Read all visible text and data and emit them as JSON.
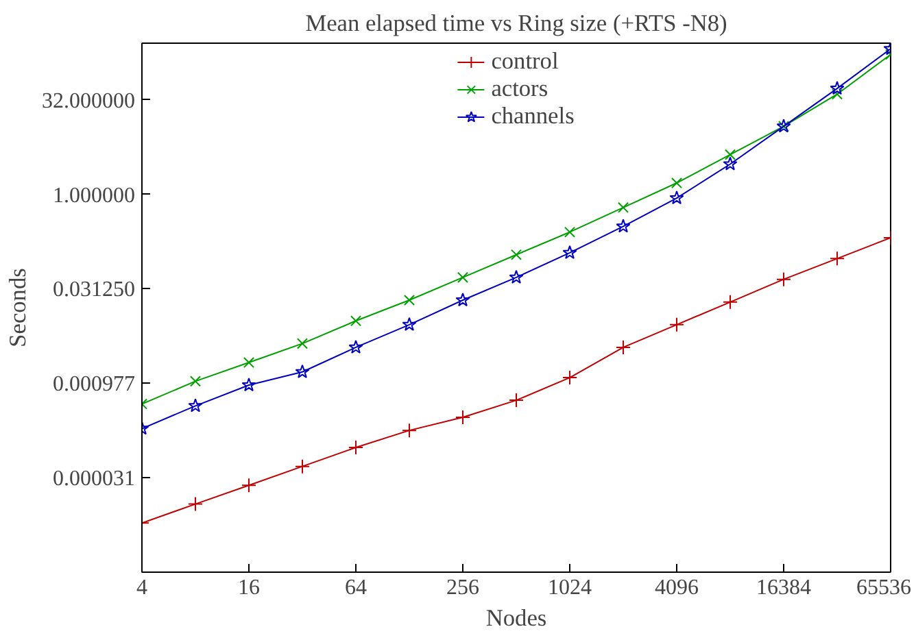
{
  "chart_data": {
    "type": "line",
    "title": "Mean elapsed time vs Ring size (+RTS -N8)",
    "xlabel": "Nodes",
    "ylabel": "Seconds",
    "log": "xy",
    "grid": false,
    "legend": "top",
    "line_style": "solid",
    "x": [
      4,
      8,
      16,
      32,
      64,
      128,
      256,
      512,
      1024,
      2048,
      4096,
      8192,
      16384,
      32768,
      65536
    ],
    "xlim": [
      4,
      65536
    ],
    "xticks": [
      4,
      16,
      64,
      256,
      1024,
      4096,
      16384,
      65536
    ],
    "ylim": [
      9.5367431640625e-07,
      256
    ],
    "yticks": [
      {
        "value": 3.0517578125e-05,
        "label": "0.000031"
      },
      {
        "value": 0.0009765625,
        "label": "0.000977"
      },
      {
        "value": 0.03125,
        "label": "0.031250"
      },
      {
        "value": 1,
        "label": "1.000000"
      },
      {
        "value": 32,
        "label": "32.000000"
      }
    ],
    "series": [
      {
        "name": "control",
        "color": "#c00000",
        "marker": "cross",
        "values": [
          5.78e-06,
          1.16e-05,
          2.31e-05,
          4.62e-05,
          9.25e-05,
          0.000173,
          0.00028,
          0.000523,
          0.0012,
          0.00364,
          0.00837,
          0.0192,
          0.0442,
          0.0947,
          0.203
        ]
      },
      {
        "name": "actors",
        "color": "#00a000",
        "marker": "x",
        "values": [
          0.000456,
          0.00105,
          0.00209,
          0.00419,
          0.00962,
          0.0206,
          0.0474,
          0.109,
          0.25,
          0.616,
          1.516,
          4.29,
          12.1,
          39.4,
          169
        ]
      },
      {
        "name": "channels",
        "color": "#0000c0",
        "marker": "star",
        "values": [
          0.000185,
          0.000425,
          0.000911,
          0.00148,
          0.00364,
          0.00837,
          0.0206,
          0.0474,
          0.117,
          0.308,
          0.871,
          3.03,
          12.1,
          48.5,
          208
        ]
      }
    ]
  }
}
